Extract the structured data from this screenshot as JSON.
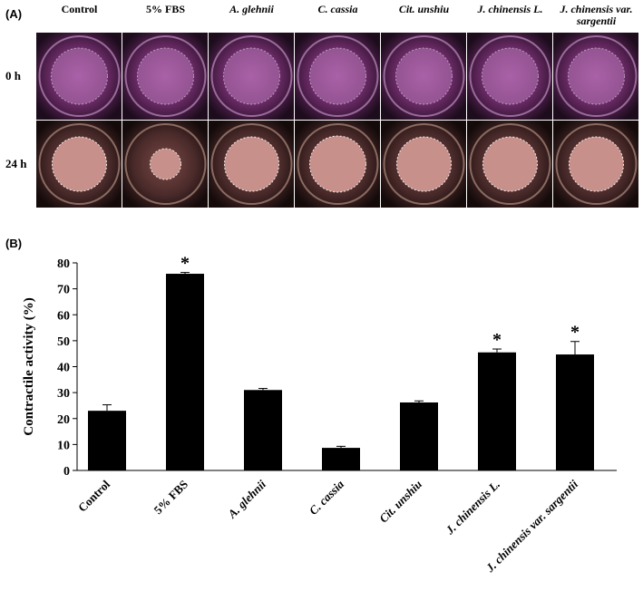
{
  "panel_a": {
    "label": "(A)",
    "columns": [
      "Control",
      "5% FBS",
      "A. glehnii",
      "C. cassia",
      "Cit. unshiu",
      "J. chinensis L.",
      "J. chinensis var. sargentii"
    ],
    "rows": [
      "0 h",
      "24 h"
    ]
  },
  "chart_data": {
    "type": "bar",
    "panel_label": "(B)",
    "y_label": "Contractile activity (%)",
    "categories": [
      "Control",
      "5% FBS",
      "A. glehnii",
      "C. cassia",
      "Cit. unshiu",
      "J. chinensis L.",
      "J. chinensis var. sargentii"
    ],
    "values": [
      23,
      75.8,
      31,
      8.7,
      26.2,
      45.5,
      44.7
    ],
    "errors": [
      2.3,
      0.5,
      0.6,
      0.6,
      0.6,
      1.3,
      5
    ],
    "color": "#000000",
    "ylim": [
      0,
      80
    ],
    "yticks": [
      0,
      10,
      20,
      30,
      40,
      50,
      60,
      70,
      80
    ],
    "annotations": [
      {
        "text": "*",
        "index": 1
      },
      {
        "text": "*",
        "index": 5
      },
      {
        "text": "*",
        "index": 6
      }
    ]
  }
}
